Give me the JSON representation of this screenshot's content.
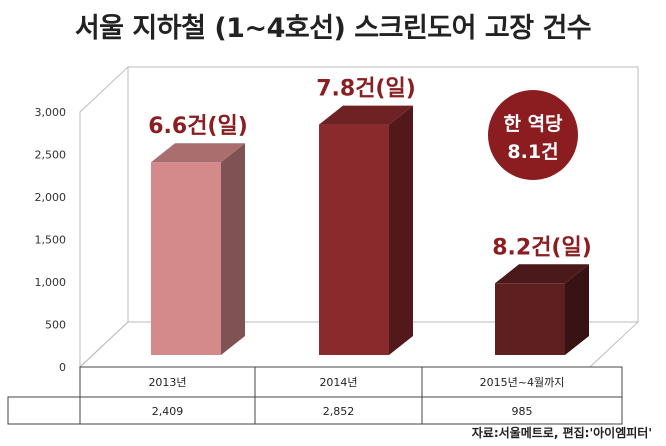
{
  "title": "서울 지하철 (1~4호선) 스크린도어 고장 건수",
  "source": "자료:서울메트로, 편집:'아이엠피터'",
  "colors": {
    "bar_2013": "#d4898a",
    "bar_2014": "#8b2a2c",
    "bar_2015": "#5e1f20",
    "label": "#8a1e21",
    "badge": "#8b1c20"
  },
  "badge": {
    "line1": "한 역당",
    "line2": "8.1건"
  },
  "chart_data": {
    "type": "bar",
    "title": "서울 지하철 (1~4호선) 스크린도어 고장 건수",
    "categories": [
      "2013년",
      "2014년",
      "2015년~4월까지"
    ],
    "values": [
      2409,
      2852,
      985
    ],
    "value_labels": [
      "2,409",
      "2,852",
      "985"
    ],
    "data_labels": [
      "6.6건(일)",
      "7.8건(일)",
      "8.2건(일)"
    ],
    "yticks": [
      "0",
      "500",
      "1,000",
      "1,500",
      "2,000",
      "2,500",
      "3,000"
    ],
    "ylim": [
      0,
      3000
    ],
    "grid": false,
    "legend": "none",
    "style": "3d-column-with-data-table"
  }
}
